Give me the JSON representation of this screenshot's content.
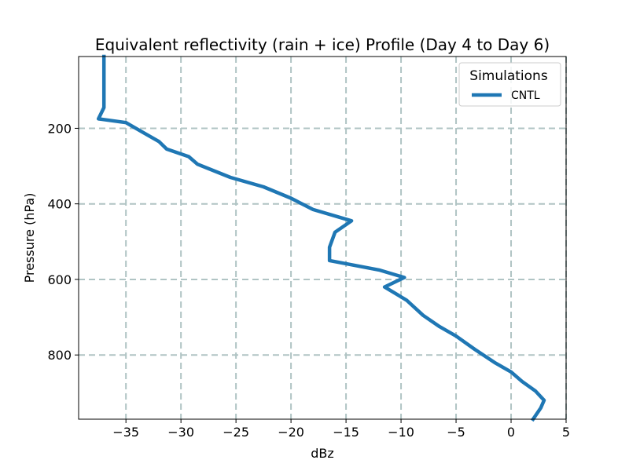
{
  "chart_data": {
    "type": "line",
    "title": "Equivalent reflectivity (rain + ice) Profile (Day 4 to Day 6)",
    "xlabel": "dBz",
    "ylabel": "Pressure (hPa)",
    "xlim": [
      -39.3,
      5.0
    ],
    "ylim": [
      970,
      10
    ],
    "y_inverted": true,
    "xticks": [
      -35,
      -30,
      -25,
      -20,
      -15,
      -10,
      -5,
      0,
      5
    ],
    "xtick_labels": [
      "−35",
      "−30",
      "−25",
      "−20",
      "−15",
      "−10",
      "−5",
      "0",
      "5"
    ],
    "yticks": [
      200,
      400,
      600,
      800
    ],
    "ytick_labels": [
      "200",
      "400",
      "600",
      "800"
    ],
    "grid": true,
    "legend": {
      "title": "Simulations",
      "position": "top-right",
      "entries": [
        "CNTL"
      ]
    },
    "series": [
      {
        "name": "CNTL",
        "color": "#1f77b4",
        "points": [
          [
            -37.0,
            10
          ],
          [
            -37.0,
            145
          ],
          [
            -37.5,
            175
          ],
          [
            -35.0,
            185
          ],
          [
            -33.5,
            210
          ],
          [
            -32.0,
            235
          ],
          [
            -31.3,
            255
          ],
          [
            -29.3,
            275
          ],
          [
            -28.5,
            295
          ],
          [
            -25.5,
            330
          ],
          [
            -22.5,
            355
          ],
          [
            -20.0,
            385
          ],
          [
            -18.0,
            415
          ],
          [
            -14.5,
            445
          ],
          [
            -16.0,
            475
          ],
          [
            -16.5,
            515
          ],
          [
            -16.5,
            550
          ],
          [
            -12.0,
            575
          ],
          [
            -9.7,
            595
          ],
          [
            -11.5,
            620
          ],
          [
            -9.5,
            655
          ],
          [
            -8.0,
            695
          ],
          [
            -6.5,
            725
          ],
          [
            -5.0,
            750
          ],
          [
            -3.3,
            785
          ],
          [
            -1.5,
            820
          ],
          [
            0.0,
            845
          ],
          [
            1.0,
            870
          ],
          [
            2.2,
            895
          ],
          [
            3.0,
            920
          ],
          [
            2.7,
            940
          ],
          [
            2.0,
            970
          ]
        ]
      }
    ]
  }
}
